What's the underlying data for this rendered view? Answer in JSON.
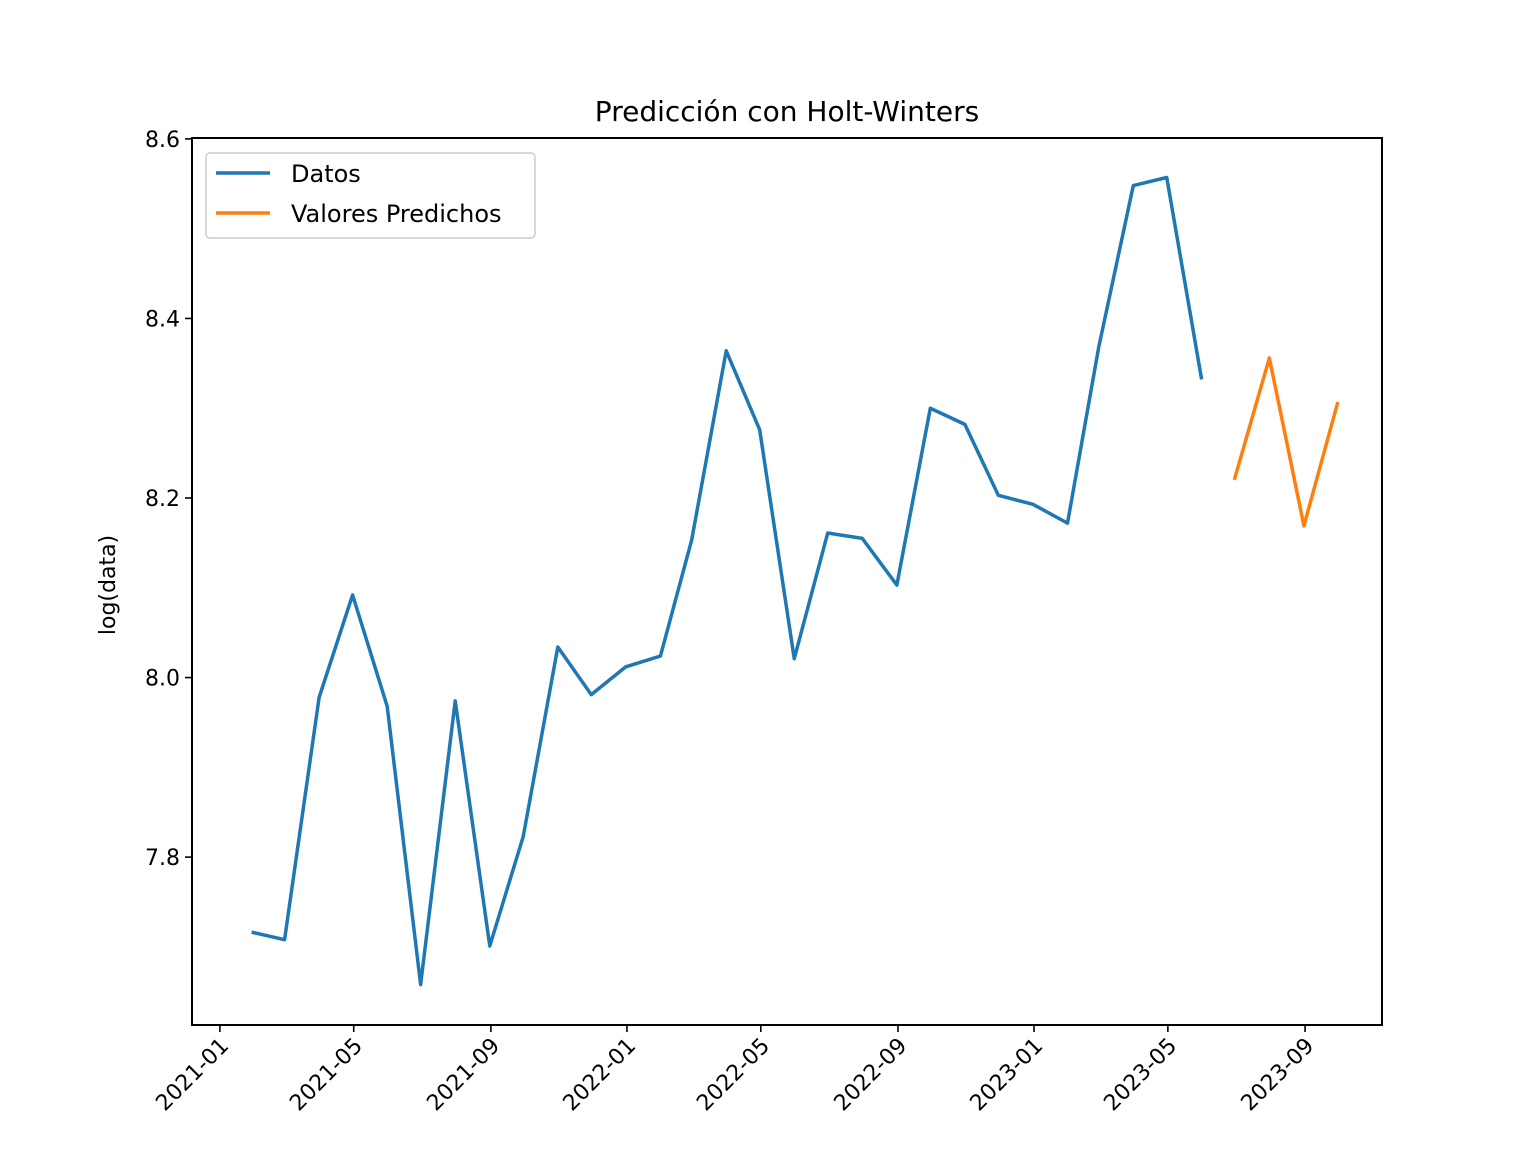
{
  "chart_data": {
    "type": "line",
    "title": "Predicción con Holt-Winters",
    "xlabel": "",
    "ylabel": "log(data)",
    "xlim": [
      "2020-12-07",
      "2023-11-09"
    ],
    "ylim": [
      7.613,
      8.601
    ],
    "x_ticks": [
      "2021-01",
      "2021-05",
      "2021-09",
      "2022-01",
      "2022-05",
      "2022-09",
      "2023-01",
      "2023-05",
      "2023-09"
    ],
    "y_ticks": [
      "7.8",
      "8.0",
      "8.2",
      "8.4",
      "8.6"
    ],
    "grid": false,
    "legend_position": "upper-left",
    "series": [
      {
        "name": "Datos",
        "color": "#1f77b4",
        "x": [
          "2021-01-31",
          "2021-02-28",
          "2021-03-31",
          "2021-04-30",
          "2021-05-31",
          "2021-06-30",
          "2021-07-31",
          "2021-08-31",
          "2021-09-30",
          "2021-10-31",
          "2021-11-30",
          "2021-12-31",
          "2022-01-31",
          "2022-02-28",
          "2022-03-31",
          "2022-04-30",
          "2022-05-31",
          "2022-06-30",
          "2022-07-31",
          "2022-08-31",
          "2022-09-30",
          "2022-10-31",
          "2022-11-30",
          "2022-12-31",
          "2023-01-31",
          "2023-02-28",
          "2023-03-31",
          "2023-04-30",
          "2023-05-31"
        ],
        "y": [
          7.716,
          7.708,
          7.978,
          8.092,
          7.968,
          7.658,
          7.974,
          7.701,
          7.823,
          8.034,
          7.981,
          8.012,
          8.024,
          8.153,
          8.364,
          8.276,
          8.021,
          8.161,
          8.155,
          8.103,
          8.3,
          8.282,
          8.203,
          8.193,
          8.172,
          8.368,
          8.548,
          8.557,
          8.334
        ]
      },
      {
        "name": "Valores Predichos",
        "color": "#ff7f0e",
        "x": [
          "2023-06-30",
          "2023-07-31",
          "2023-08-31",
          "2023-09-30"
        ],
        "y": [
          8.222,
          8.356,
          8.169,
          8.305
        ]
      }
    ]
  }
}
